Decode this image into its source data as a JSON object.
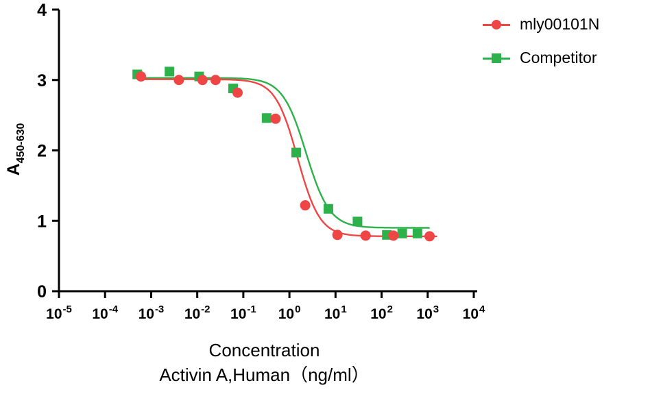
{
  "chart_data": {
    "type": "scatter",
    "title": "",
    "xlabel": "Concentration",
    "xlabel2": "Activin A,Human（ng/ml）",
    "ylabel": "A",
    "ylabel_subscript": "450-630",
    "x_scale": "log10",
    "x_tick_base": "10",
    "x_tick_exponents": [
      -5,
      -4,
      -3,
      -2,
      -1,
      0,
      1,
      2,
      3,
      4
    ],
    "xlim_exponents": [
      -5,
      4
    ],
    "y_ticks": [
      0,
      1,
      2,
      3,
      4
    ],
    "ylim": [
      0,
      4
    ],
    "grid": false,
    "legend_position": "top-right",
    "series": [
      {
        "name": "mly00101N",
        "color": "#ee4545",
        "marker": "circle",
        "points": [
          [
            0.0006,
            3.05
          ],
          [
            0.004,
            3.0
          ],
          [
            0.013,
            3.0
          ],
          [
            0.025,
            3.0
          ],
          [
            0.075,
            2.82
          ],
          [
            0.5,
            2.45
          ],
          [
            2.2,
            1.22
          ],
          [
            11,
            0.8
          ],
          [
            45,
            0.79
          ],
          [
            180,
            0.79
          ],
          [
            1100,
            0.78
          ]
        ],
        "fit": {
          "top": 3.01,
          "bottom": 0.78,
          "ec50": 1.5,
          "hill": 1.8
        },
        "fit_range": [
          0.0005,
          1600
        ]
      },
      {
        "name": "Competitor",
        "color": "#2cb14b",
        "marker": "square",
        "points": [
          [
            0.0005,
            3.08
          ],
          [
            0.0025,
            3.12
          ],
          [
            0.011,
            3.05
          ],
          [
            0.06,
            2.88
          ],
          [
            0.32,
            2.46
          ],
          [
            1.4,
            1.97
          ],
          [
            7,
            1.17
          ],
          [
            30,
            0.99
          ],
          [
            130,
            0.8
          ],
          [
            280,
            0.82
          ],
          [
            600,
            0.82
          ]
        ],
        "fit": {
          "top": 3.03,
          "bottom": 0.9,
          "ec50": 2.3,
          "hill": 1.7
        },
        "fit_range": [
          0.0004,
          1100
        ]
      }
    ]
  }
}
